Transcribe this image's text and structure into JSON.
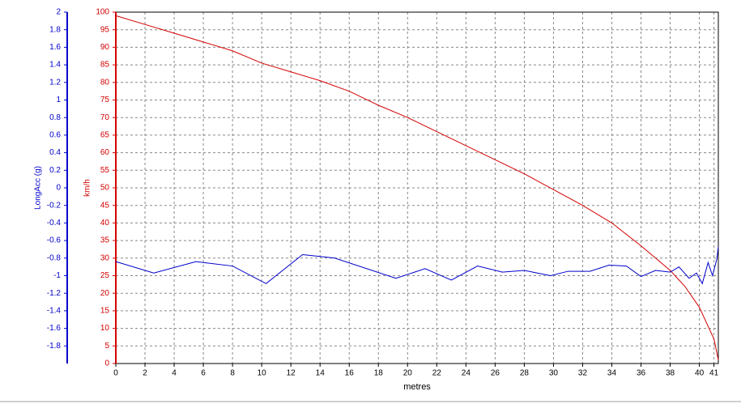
{
  "chart_data": {
    "type": "line",
    "x_label": "metres",
    "y_label": "km/h",
    "y2_label": "LongAcc (g)",
    "xlim": [
      0,
      41.3
    ],
    "xticks": [
      0,
      2,
      4,
      6,
      8,
      10,
      12,
      14,
      16,
      18,
      20,
      22,
      24,
      26,
      28,
      30,
      32,
      34,
      36,
      38,
      40,
      41
    ],
    "ylim": [
      0,
      100
    ],
    "yticks": [
      0,
      5,
      10,
      15,
      20,
      25,
      30,
      35,
      40,
      45,
      50,
      55,
      60,
      65,
      70,
      75,
      80,
      85,
      90,
      95,
      100
    ],
    "y2lim": [
      -2,
      2
    ],
    "y2ticks": [
      -1.8,
      -1.6,
      -1.4,
      -1.2,
      -1,
      -0.8,
      -0.6,
      -0.4,
      -0.2,
      0,
      0.2,
      0.4,
      0.6,
      0.8,
      1,
      1.2,
      1.4,
      1.6,
      1.8,
      2
    ],
    "grid": true,
    "y_color": "#d40000",
    "y2_color": "#0000cc",
    "series": [
      {
        "color": "#d40000",
        "x": [
          0,
          2,
          4,
          6,
          8,
          10,
          12,
          14,
          16,
          18,
          20,
          22,
          24,
          26,
          28,
          30,
          32,
          34,
          36,
          38,
          39,
          40,
          41,
          41.3
        ],
        "values": [
          99,
          96.5,
          94,
          91.5,
          89,
          85.5,
          83,
          80.5,
          77.5,
          73.5,
          70,
          66,
          62,
          58,
          54,
          49.5,
          45,
          40,
          33.5,
          26.5,
          22,
          16,
          7,
          1
        ]
      },
      {
        "color": "#0000cc",
        "axis": "y2",
        "x": [
          0,
          2.6,
          5.5,
          8,
          10.3,
          12.8,
          15,
          19.2,
          21.2,
          23,
          24.8,
          26.5,
          28,
          29.8,
          31,
          32.5,
          33.8,
          35,
          36,
          37,
          38,
          38.6,
          39.3,
          39.8,
          40.2,
          40.6,
          40.9,
          41.2,
          41.3
        ],
        "values": [
          -0.84,
          -0.97,
          -0.84,
          -0.89,
          -1.09,
          -0.76,
          -0.8,
          -1.03,
          -0.92,
          -1.05,
          -0.89,
          -0.96,
          -0.94,
          -1.0,
          -0.95,
          -0.95,
          -0.88,
          -0.89,
          -1.01,
          -0.94,
          -0.96,
          -0.9,
          -1.03,
          -0.97,
          -1.09,
          -0.85,
          -1.0,
          -0.81,
          -0.67
        ]
      }
    ]
  }
}
